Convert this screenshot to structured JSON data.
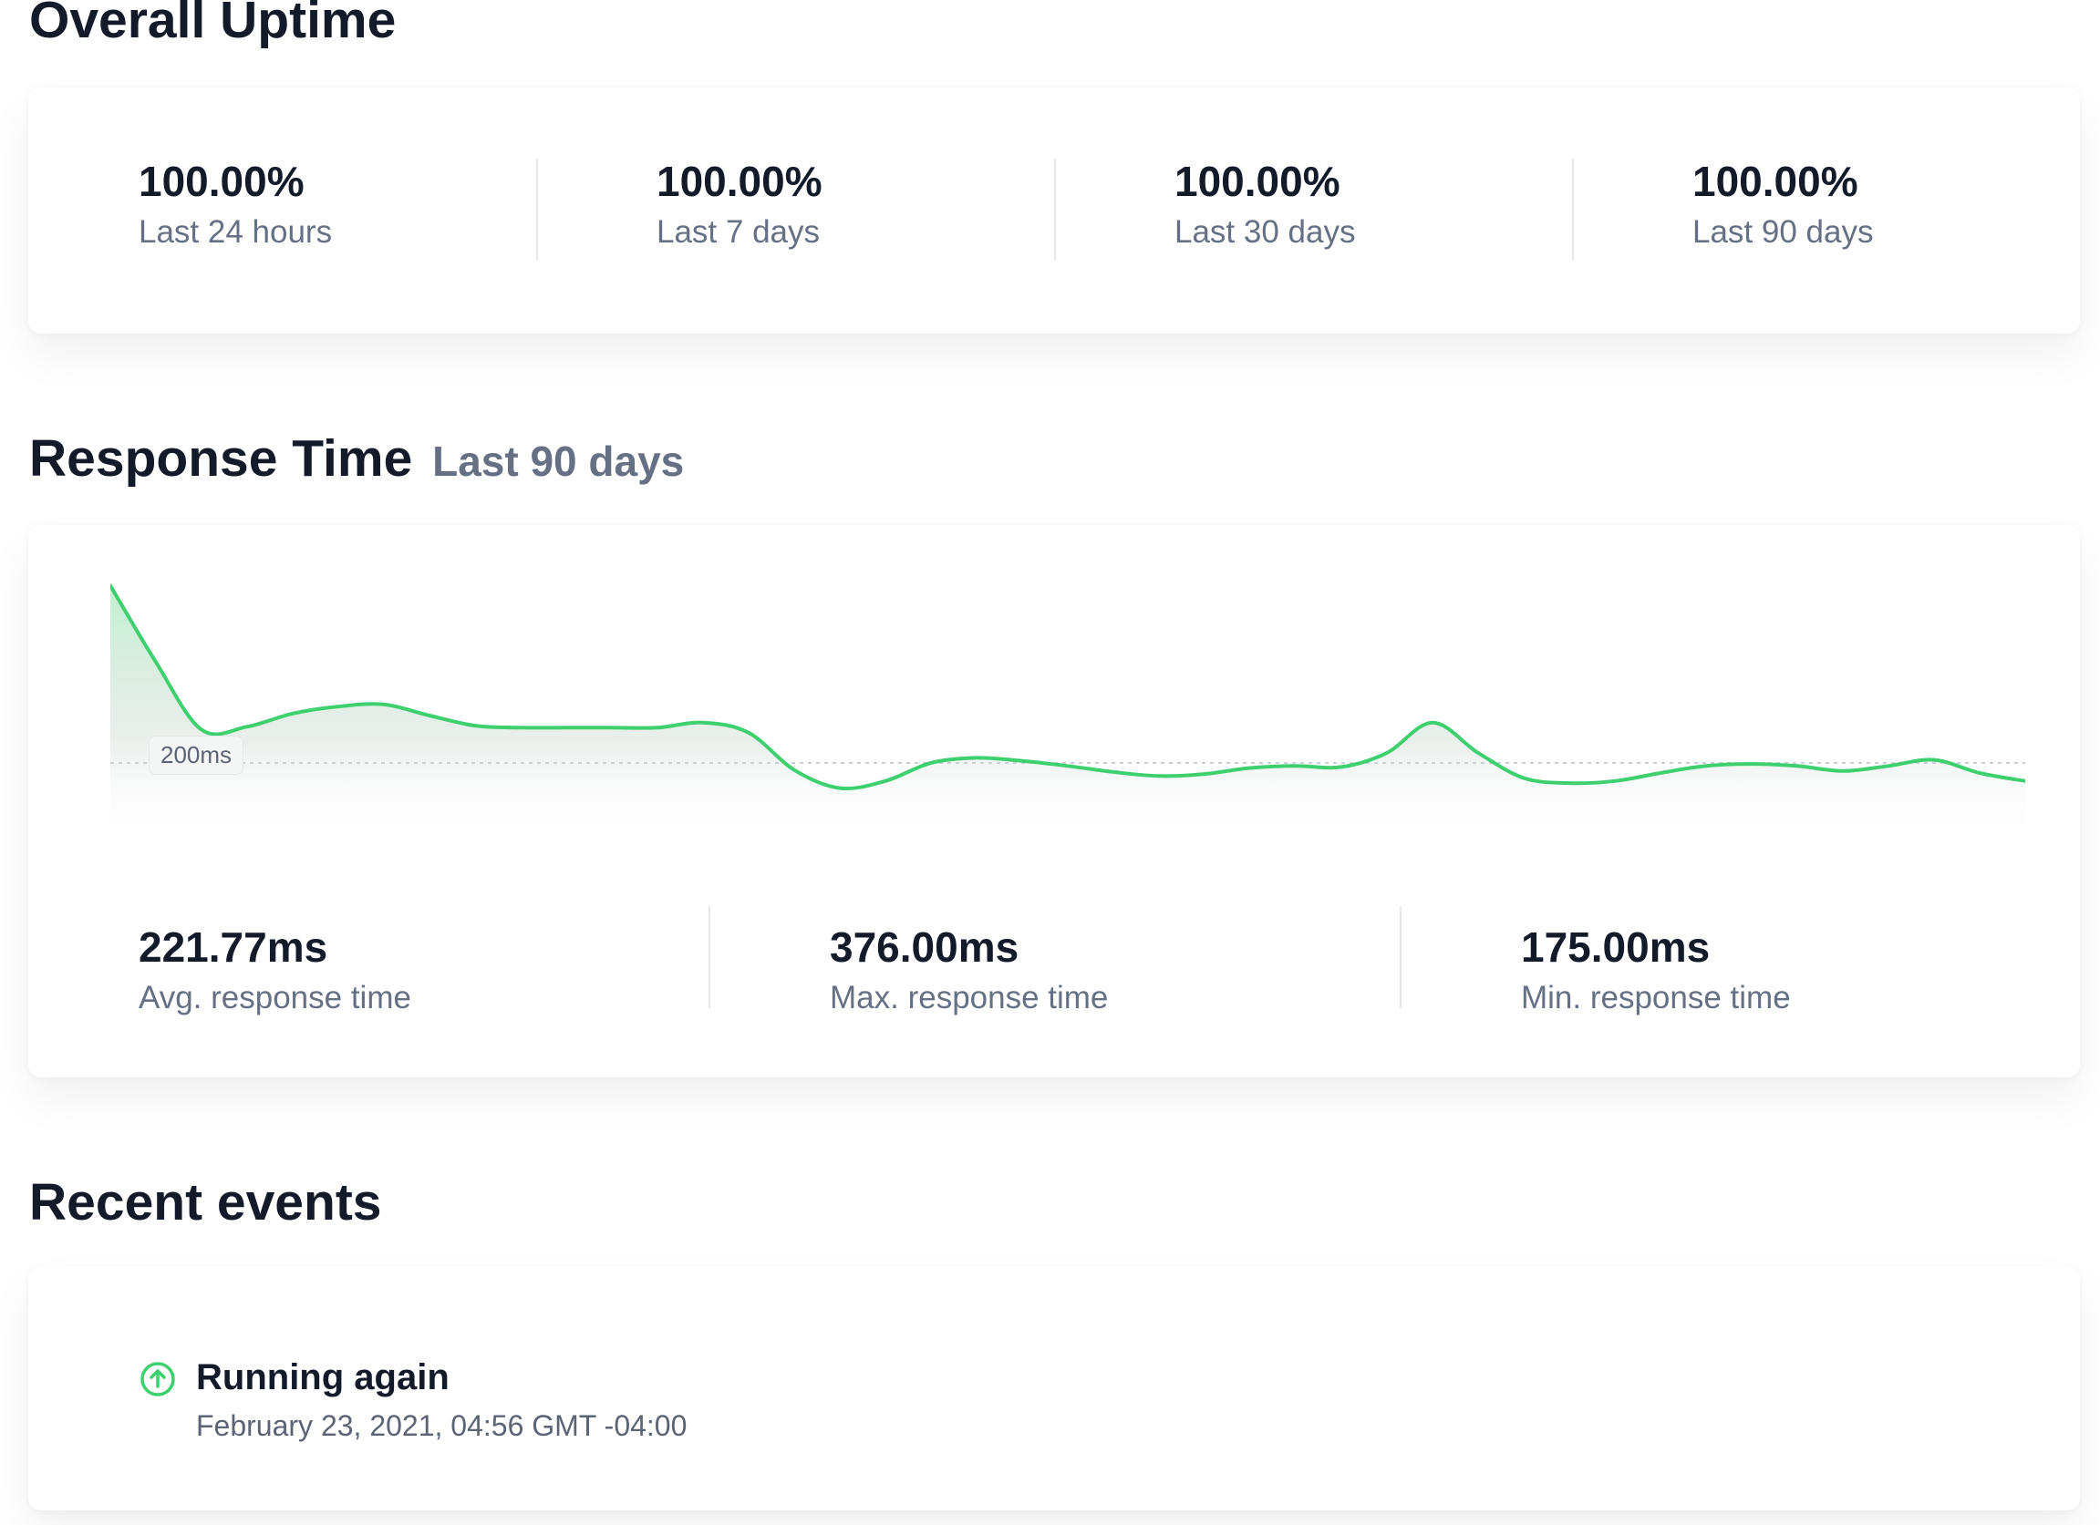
{
  "overall_uptime": {
    "title": "Overall Uptime",
    "stats": [
      {
        "value": "100.00%",
        "label": "Last 24 hours"
      },
      {
        "value": "100.00%",
        "label": "Last 7 days"
      },
      {
        "value": "100.00%",
        "label": "Last 30 days"
      },
      {
        "value": "100.00%",
        "label": "Last 90 days"
      }
    ]
  },
  "response_time": {
    "title": "Response Time",
    "subtitle": "Last 90 days",
    "reference_label": "200ms",
    "stats": [
      {
        "value": "221.77ms",
        "label": "Avg. response time"
      },
      {
        "value": "376.00ms",
        "label": "Max. response time"
      },
      {
        "value": "175.00ms",
        "label": "Min. response time"
      }
    ]
  },
  "chart_data": {
    "type": "area",
    "title": "Response Time",
    "subtitle": "Last 90 days",
    "reference_line": {
      "value": 200,
      "label": "200ms"
    },
    "y_unit": "ms",
    "ylim": [
      0,
      380
    ],
    "series": [
      {
        "name": "Response time",
        "values": [
          376,
          300,
          233,
          236,
          249,
          256,
          258,
          247,
          237,
          235,
          235,
          235,
          235,
          240,
          230,
          193,
          175,
          182,
          200,
          205,
          202,
          197,
          191,
          187,
          189,
          195,
          197,
          196,
          210,
          240,
          210,
          185,
          180,
          182,
          190,
          197,
          199,
          197,
          192,
          197,
          203,
          190,
          182
        ]
      }
    ],
    "color": "#3ecf6e"
  },
  "recent_events": {
    "title": "Recent events",
    "items": [
      {
        "title": "Running again",
        "time": "February 23, 2021, 04:56 GMT -04:00",
        "icon": "arrow-up-circle-icon",
        "status_color": "#3ecf6e"
      }
    ]
  }
}
